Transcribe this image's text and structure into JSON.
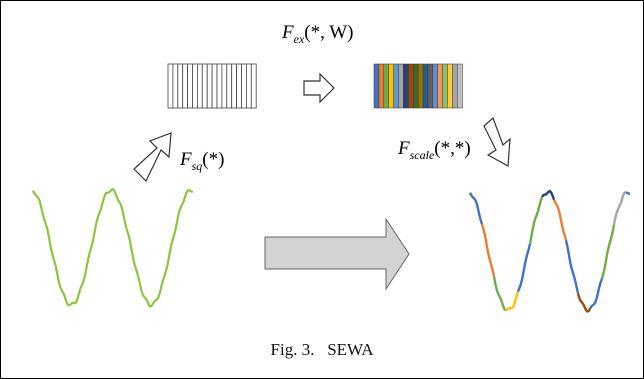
{
  "labels": {
    "f_ex": "F",
    "f_ex_sub": "ex",
    "f_ex_args": "(*, W)",
    "f_sq": "F",
    "f_sq_sub": "sq",
    "f_sq_args": "(*)",
    "f_scale": "F",
    "f_scale_sub": "scale",
    "f_scale_args": "(*,*)"
  },
  "caption": {
    "fig": "Fig. 3.",
    "title": "SEWA"
  },
  "colors": {
    "input_signal": "#8cc63f",
    "big_arrow_fill": "#d3d3d3",
    "cell_colors": [
      "#4472c4",
      "#ed7d31",
      "#70ad47",
      "#ffc000",
      "#5b9bd5",
      "#a5a5a5",
      "#264478",
      "#9e480e",
      "#43682b",
      "#997300",
      "#255e91",
      "#636363",
      "#698ed0",
      "#f1975a",
      "#8cc168",
      "#ffcd33",
      "#a5a5a5",
      "#c0c0c0"
    ]
  }
}
